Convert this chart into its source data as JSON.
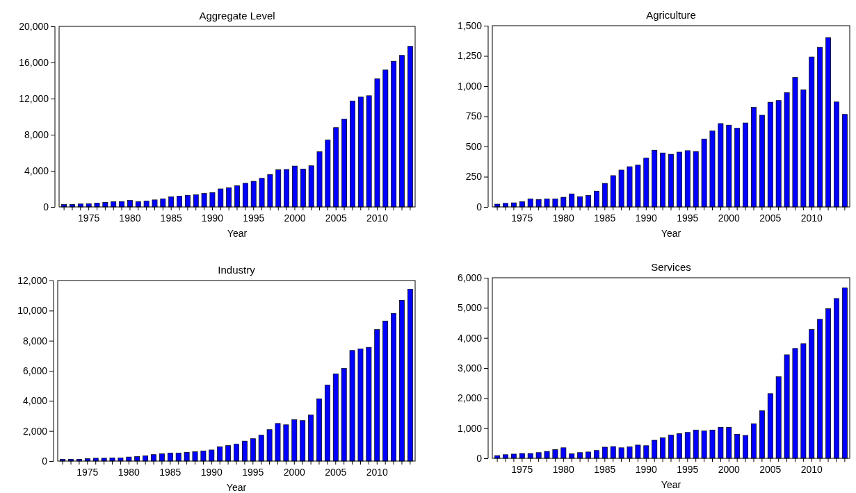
{
  "chart_data": [
    {
      "type": "bar",
      "title": "Aggregate Level",
      "xlabel": "Year",
      "categories": [
        null,
        null,
        null,
        "1975",
        null,
        null,
        null,
        null,
        "1980",
        null,
        null,
        null,
        null,
        "1985",
        null,
        null,
        null,
        null,
        "1990",
        null,
        null,
        null,
        null,
        "1995",
        null,
        null,
        null,
        null,
        "2000",
        null,
        null,
        null,
        null,
        "2005",
        null,
        null,
        null,
        null,
        "2010",
        null,
        null,
        null,
        null
      ],
      "values": [
        260,
        280,
        330,
        360,
        420,
        510,
        580,
        600,
        720,
        590,
        660,
        780,
        900,
        1130,
        1200,
        1290,
        1350,
        1500,
        1600,
        2000,
        2130,
        2350,
        2620,
        2840,
        3170,
        3600,
        4130,
        4150,
        4530,
        4200,
        4560,
        6120,
        7410,
        8790,
        9730,
        11730,
        12170,
        12320,
        14200,
        15170,
        16140,
        16790,
        17790
      ],
      "color": "#0000ff",
      "ylim": [
        0,
        20000
      ],
      "yticks": [
        {
          "value": 0,
          "label": "0"
        },
        {
          "value": 4000,
          "label": "4,000"
        },
        {
          "value": 8000,
          "label": "8,000"
        },
        {
          "value": 12000,
          "label": "12,000"
        },
        {
          "value": 16000,
          "label": "16,000"
        },
        {
          "value": 20000,
          "label": "20,000"
        }
      ],
      "grid": false,
      "legend": false
    },
    {
      "type": "bar",
      "title": "Agriculture",
      "xlabel": "Year",
      "categories": [
        null,
        null,
        null,
        "1975",
        null,
        null,
        null,
        null,
        "1980",
        null,
        null,
        null,
        null,
        "1985",
        null,
        null,
        null,
        null,
        "1990",
        null,
        null,
        null,
        null,
        "1995",
        null,
        null,
        null,
        null,
        "2000",
        null,
        null,
        null,
        null,
        "2005",
        null,
        null,
        null,
        null,
        "2010",
        null,
        null,
        null,
        null
      ],
      "values": [
        23,
        30,
        34,
        44,
        66,
        62,
        66,
        66,
        80,
        108,
        85,
        96,
        131,
        195,
        259,
        305,
        333,
        346,
        404,
        470,
        447,
        436,
        454,
        466,
        459,
        562,
        629,
        690,
        677,
        651,
        695,
        824,
        759,
        867,
        881,
        947,
        1071,
        970,
        1241,
        1321,
        1402,
        869,
        766
      ],
      "color": "#0000ff",
      "ylim": [
        0,
        1500
      ],
      "yticks": [
        {
          "value": 0,
          "label": "0"
        },
        {
          "value": 250,
          "label": "250"
        },
        {
          "value": 500,
          "label": "500"
        },
        {
          "value": 750,
          "label": "750"
        },
        {
          "value": 1000,
          "label": "1,000"
        },
        {
          "value": 1250,
          "label": "1,250"
        },
        {
          "value": 1500,
          "label": "1,500"
        }
      ],
      "grid": false,
      "legend": false
    },
    {
      "type": "bar",
      "title": "Industry",
      "xlabel": "Year",
      "categories": [
        null,
        null,
        null,
        "1975",
        null,
        null,
        null,
        null,
        "1980",
        null,
        null,
        null,
        null,
        "1985",
        null,
        null,
        null,
        null,
        "1990",
        null,
        null,
        null,
        null,
        "1995",
        null,
        null,
        null,
        null,
        "2000",
        null,
        null,
        null,
        null,
        "2005",
        null,
        null,
        null,
        null,
        "2010",
        null,
        null,
        null,
        null
      ],
      "values": [
        110,
        120,
        120,
        160,
        190,
        190,
        210,
        210,
        270,
        300,
        350,
        430,
        480,
        530,
        530,
        580,
        620,
        670,
        740,
        940,
        1030,
        1120,
        1330,
        1490,
        1720,
        2090,
        2500,
        2410,
        2760,
        2690,
        3060,
        4140,
        5050,
        5790,
        6160,
        7350,
        7450,
        7560,
        8740,
        9310,
        9820,
        10690,
        11420
      ],
      "color": "#0000ff",
      "ylim": [
        0,
        12000
      ],
      "yticks": [
        {
          "value": 0,
          "label": "0"
        },
        {
          "value": 2000,
          "label": "2,000"
        },
        {
          "value": 4000,
          "label": "4,000"
        },
        {
          "value": 6000,
          "label": "6,000"
        },
        {
          "value": 8000,
          "label": "8,000"
        },
        {
          "value": 10000,
          "label": "10,000"
        },
        {
          "value": 12000,
          "label": "12,000"
        }
      ],
      "grid": false,
      "legend": false
    },
    {
      "type": "bar",
      "title": "Services",
      "xlabel": "Year",
      "categories": [
        null,
        null,
        null,
        "1975",
        null,
        null,
        null,
        null,
        "1980",
        null,
        null,
        null,
        null,
        "1985",
        null,
        null,
        null,
        null,
        "1990",
        null,
        null,
        null,
        null,
        "1995",
        null,
        null,
        null,
        null,
        "2000",
        null,
        null,
        null,
        null,
        "2005",
        null,
        null,
        null,
        null,
        "2010",
        null,
        null,
        null,
        null
      ],
      "values": [
        90,
        120,
        140,
        160,
        160,
        190,
        230,
        290,
        350,
        150,
        190,
        210,
        260,
        370,
        390,
        350,
        380,
        440,
        420,
        600,
        680,
        770,
        820,
        860,
        940,
        910,
        940,
        1030,
        1030,
        800,
        760,
        1150,
        1580,
        2150,
        2710,
        3440,
        3650,
        3810,
        4280,
        4620,
        4970,
        5310,
        5660
      ],
      "color": "#0000ff",
      "ylim": [
        0,
        6000
      ],
      "yticks": [
        {
          "value": 0,
          "label": "0"
        },
        {
          "value": 1000,
          "label": "1,000"
        },
        {
          "value": 2000,
          "label": "2,000"
        },
        {
          "value": 3000,
          "label": "3,000"
        },
        {
          "value": 4000,
          "label": "4,000"
        },
        {
          "value": 5000,
          "label": "5,000"
        },
        {
          "value": 6000,
          "label": "6,000"
        }
      ],
      "grid": false,
      "legend": false
    }
  ]
}
